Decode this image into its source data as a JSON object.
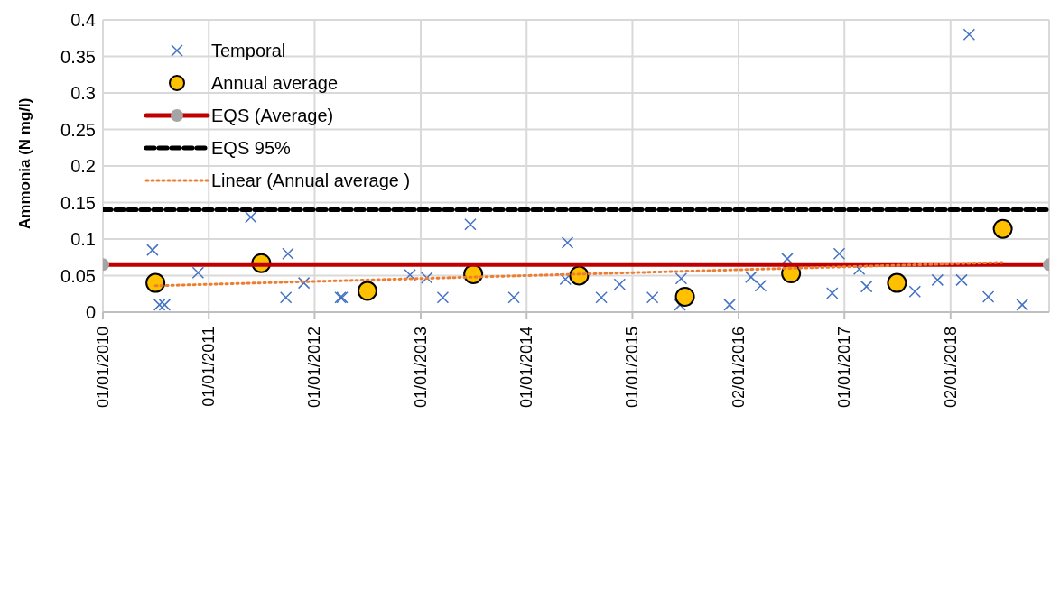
{
  "chart_data": {
    "type": "scatter",
    "ylabel": "Ammonia (N mg/l)",
    "series": [
      {
        "name": "Temporal",
        "marker": "cross",
        "color": "#4472c4",
        "x": [
          "2010-06-21",
          "2010-07-15",
          "2010-08-02",
          "2010-11-25",
          "2011-05-26",
          "2011-10-01",
          "2011-09-24",
          "2011-11-25",
          "2012-03-30",
          "2012-04-05",
          "2012-11-25",
          "2013-01-22",
          "2013-03-18",
          "2013-06-21",
          "2013-11-18",
          "2014-05-22",
          "2014-05-15",
          "2014-09-16",
          "2014-11-18",
          "2015-03-11",
          "2015-06-18",
          "2015-06-14",
          "2015-12-02",
          "2016-02-14",
          "2016-03-18",
          "2016-06-18",
          "2016-11-20",
          "2016-12-14",
          "2017-02-21",
          "2017-03-18",
          "2017-09-01",
          "2017-11-18",
          "2018-02-09",
          "2018-03-07",
          "2018-05-12",
          "2018-09-06"
        ],
        "values": [
          0.085,
          0.01,
          0.01,
          0.054,
          0.13,
          0.08,
          0.02,
          0.04,
          0.02,
          0.02,
          0.051,
          0.047,
          0.02,
          0.12,
          0.02,
          0.095,
          0.045,
          0.02,
          0.038,
          0.02,
          0.046,
          0.01,
          0.01,
          0.048,
          0.036,
          0.073,
          0.026,
          0.08,
          0.059,
          0.035,
          0.028,
          0.044,
          0.044,
          0.38,
          0.021,
          0.01
        ]
      },
      {
        "name": "Annual average",
        "marker": "circle",
        "color": "#ffc000",
        "x": [
          "2010-07-01",
          "2011-07-01",
          "2012-07-01",
          "2013-07-01",
          "2014-07-01",
          "2015-07-01",
          "2016-07-01",
          "2017-07-01",
          "2018-07-01"
        ],
        "values": [
          0.04,
          0.067,
          0.029,
          0.052,
          0.05,
          0.021,
          0.053,
          0.04,
          0.114
        ]
      },
      {
        "name": "EQS (Average)",
        "type": "line",
        "marker": "circle",
        "line_style": "solid",
        "color": "#c00000",
        "x": [
          "2010-01-01",
          "2018-12-08"
        ],
        "values": [
          0.065,
          0.065
        ]
      },
      {
        "name": "EQS 95%",
        "type": "line",
        "marker": "none",
        "line_style": "dashed",
        "color": "#000000",
        "x": [
          "2010-01-01",
          "2018-12-08"
        ],
        "values": [
          0.14,
          0.14
        ]
      },
      {
        "name": "Linear (Annual average )",
        "type": "line",
        "marker": "none",
        "line_style": "dotted",
        "color": "#ed7d31",
        "x": [
          "2010-07-01",
          "2018-07-01"
        ],
        "values": [
          0.036,
          0.068
        ]
      }
    ],
    "xlim": [
      "2010-01-01",
      "2018-12-08"
    ],
    "xticks": [
      {
        "value": "2010-01-01",
        "label": "01/01/2010"
      },
      {
        "value": "2011-01-01",
        "label": "01/01/2011"
      },
      {
        "value": "2012-01-01",
        "label": "01/01/2012"
      },
      {
        "value": "2013-01-01",
        "label": "01/01/2013"
      },
      {
        "value": "2014-01-01",
        "label": "01/01/2014"
      },
      {
        "value": "2015-01-01",
        "label": "01/01/2015"
      },
      {
        "value": "2016-01-02",
        "label": "02/01/2016"
      },
      {
        "value": "2017-01-01",
        "label": "01/01/2017"
      },
      {
        "value": "2018-01-02",
        "label": "02/01/2018"
      }
    ],
    "ylim": [
      0,
      0.4
    ],
    "yticks": [
      0,
      0.05,
      0.1,
      0.15,
      0.2,
      0.25,
      0.3,
      0.35,
      0.4
    ],
    "grid": true,
    "legend": "top left"
  }
}
